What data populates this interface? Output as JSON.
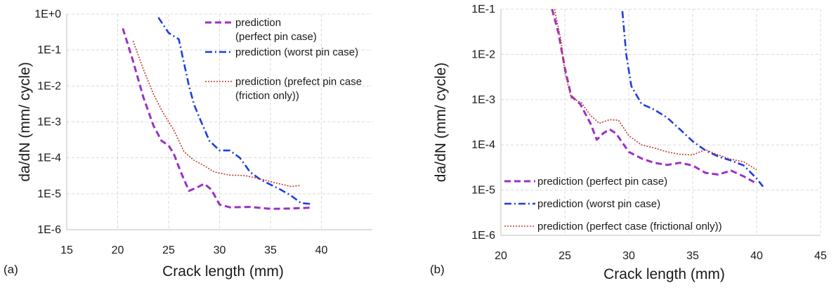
{
  "chart_data": [
    {
      "type": "line",
      "panel_label": "(a)",
      "xlabel": "Crack length (mm)",
      "ylabel": "da/dN (mm/ cycle)",
      "xlim": [
        15,
        45
      ],
      "ylim": [
        1e-06,
        1
      ],
      "yscale": "log",
      "x_ticks": [
        15,
        20,
        25,
        30,
        35,
        40
      ],
      "x_tick_labels": [
        "15",
        "20",
        "25",
        "30",
        "35",
        "40"
      ],
      "y_ticks": [
        1e-06,
        1e-05,
        0.0001,
        0.001,
        0.01,
        0.1,
        1
      ],
      "y_tick_labels": [
        "1E-6",
        "1E-5",
        "1E-4",
        "1E-3",
        "1E-2",
        "1E-1",
        "1E+0"
      ],
      "grid": true,
      "legend_position": "top-right",
      "series": [
        {
          "name": "prediction (perfect pin case)",
          "color": "#9b30c8",
          "dash": "dashed",
          "points": [
            [
              20.5,
              0.4
            ],
            [
              21.5,
              0.05
            ],
            [
              22.5,
              0.005
            ],
            [
              23.5,
              0.0008
            ],
            [
              24.3,
              0.0003
            ],
            [
              25,
              0.00022
            ],
            [
              25.5,
              0.00013
            ],
            [
              26.2,
              4e-05
            ],
            [
              27,
              1.2e-05
            ],
            [
              27.8,
              1.5e-05
            ],
            [
              28.5,
              1.9e-05
            ],
            [
              29.2,
              1.3e-05
            ],
            [
              30,
              5e-06
            ],
            [
              31,
              4.2e-06
            ],
            [
              33,
              4.3e-06
            ],
            [
              35,
              3.8e-06
            ],
            [
              37,
              3.9e-06
            ],
            [
              39,
              4.1e-06
            ]
          ]
        },
        {
          "name": "prediction (worst pin case)",
          "color": "#1f3de0",
          "dash": "dashdot",
          "points": [
            [
              24,
              0.8
            ],
            [
              25,
              0.3
            ],
            [
              26,
              0.2
            ],
            [
              27,
              0.01
            ],
            [
              27.5,
              0.003
            ],
            [
              28.2,
              0.001
            ],
            [
              29,
              0.0003
            ],
            [
              30,
              0.00016
            ],
            [
              31,
              0.00016
            ],
            [
              32,
              0.0001
            ],
            [
              33,
              4e-05
            ],
            [
              34,
              2.5e-05
            ],
            [
              35,
              1.8e-05
            ],
            [
              36,
              1.3e-05
            ],
            [
              37,
              9e-06
            ],
            [
              38,
              5.5e-06
            ],
            [
              39,
              5.2e-06
            ]
          ]
        },
        {
          "name": "prediction (prefect pin case (friction only))",
          "color": "#c0392b",
          "dash": "dotted",
          "points": [
            [
              21.5,
              0.18
            ],
            [
              22.5,
              0.03
            ],
            [
              23.5,
              0.006
            ],
            [
              24.5,
              0.0017
            ],
            [
              25.5,
              0.0006
            ],
            [
              26.5,
              0.00015
            ],
            [
              27.5,
              8.5e-05
            ],
            [
              28.5,
              6e-05
            ],
            [
              29.5,
              4e-05
            ],
            [
              31,
              3.3e-05
            ],
            [
              32.5,
              3.2e-05
            ],
            [
              34,
              2.6e-05
            ],
            [
              35.5,
              2e-05
            ],
            [
              37,
              1.6e-05
            ],
            [
              38,
              1.7e-05
            ]
          ]
        }
      ]
    },
    {
      "type": "line",
      "panel_label": "(b)",
      "xlabel": "Crack length (mm)",
      "ylabel": "da/dN (mm/ cycle)",
      "xlim": [
        20,
        45
      ],
      "ylim": [
        1e-06,
        0.1
      ],
      "yscale": "log",
      "x_ticks": [
        20,
        25,
        30,
        35,
        40,
        45
      ],
      "x_tick_labels": [
        "20",
        "25",
        "30",
        "35",
        "40",
        "45"
      ],
      "y_ticks": [
        1e-06,
        1e-05,
        0.0001,
        0.001,
        0.01,
        0.1
      ],
      "y_tick_labels": [
        "1E-6",
        "1E-5",
        "1E-4",
        "1E-3",
        "1E-2",
        "1E-1"
      ],
      "grid": true,
      "legend_position": "bottom-left",
      "series": [
        {
          "name": "prediction (perfect pin case)",
          "color": "#9b30c8",
          "dash": "dashed",
          "points": [
            [
              24,
              0.1
            ],
            [
              24.5,
              0.03
            ],
            [
              25,
              0.005
            ],
            [
              25.5,
              0.0012
            ],
            [
              26.2,
              0.0008
            ],
            [
              27,
              0.0003
            ],
            [
              27.5,
              0.00013
            ],
            [
              28,
              0.00018
            ],
            [
              28.5,
              0.00022
            ],
            [
              29,
              0.00018
            ],
            [
              30,
              7e-05
            ],
            [
              31,
              5e-05
            ],
            [
              32,
              4e-05
            ],
            [
              33,
              3.6e-05
            ],
            [
              34,
              4e-05
            ],
            [
              35,
              3.5e-05
            ],
            [
              36,
              2.4e-05
            ],
            [
              37,
              2.2e-05
            ],
            [
              38,
              2.7e-05
            ],
            [
              39,
              2e-05
            ],
            [
              40,
              1.4e-05
            ]
          ]
        },
        {
          "name": "prediction (worst pin case)",
          "color": "#1f3de0",
          "dash": "dashdot",
          "points": [
            [
              29.5,
              0.09
            ],
            [
              29.8,
              0.01
            ],
            [
              30.2,
              0.002
            ],
            [
              31,
              0.0008
            ],
            [
              32,
              0.0006
            ],
            [
              33,
              0.0004
            ],
            [
              34,
              0.00022
            ],
            [
              35,
              0.00012
            ],
            [
              36,
              7.5e-05
            ],
            [
              37,
              5.5e-05
            ],
            [
              38,
              4.5e-05
            ],
            [
              39,
              3.5e-05
            ],
            [
              40,
              1.8e-05
            ],
            [
              40.5,
              1.2e-05
            ]
          ]
        },
        {
          "name": "prediction (perfect case (frictional only))",
          "color": "#c0392b",
          "dash": "dotted",
          "points": [
            [
              24.2,
              0.1
            ],
            [
              24.7,
              0.02
            ],
            [
              25,
              0.004
            ],
            [
              25.5,
              0.0011
            ],
            [
              26.3,
              0.00085
            ],
            [
              27,
              0.00045
            ],
            [
              27.7,
              0.0003
            ],
            [
              28.5,
              0.00036
            ],
            [
              29.2,
              0.00035
            ],
            [
              30,
              0.00016
            ],
            [
              31,
              0.0001
            ],
            [
              32,
              8.5e-05
            ],
            [
              33,
              7e-05
            ],
            [
              34,
              6.2e-05
            ],
            [
              35,
              6e-05
            ],
            [
              36,
              7.8e-05
            ],
            [
              37,
              6e-05
            ],
            [
              38,
              4.8e-05
            ],
            [
              39,
              4.2e-05
            ],
            [
              40,
              2.8e-05
            ]
          ]
        }
      ]
    }
  ]
}
